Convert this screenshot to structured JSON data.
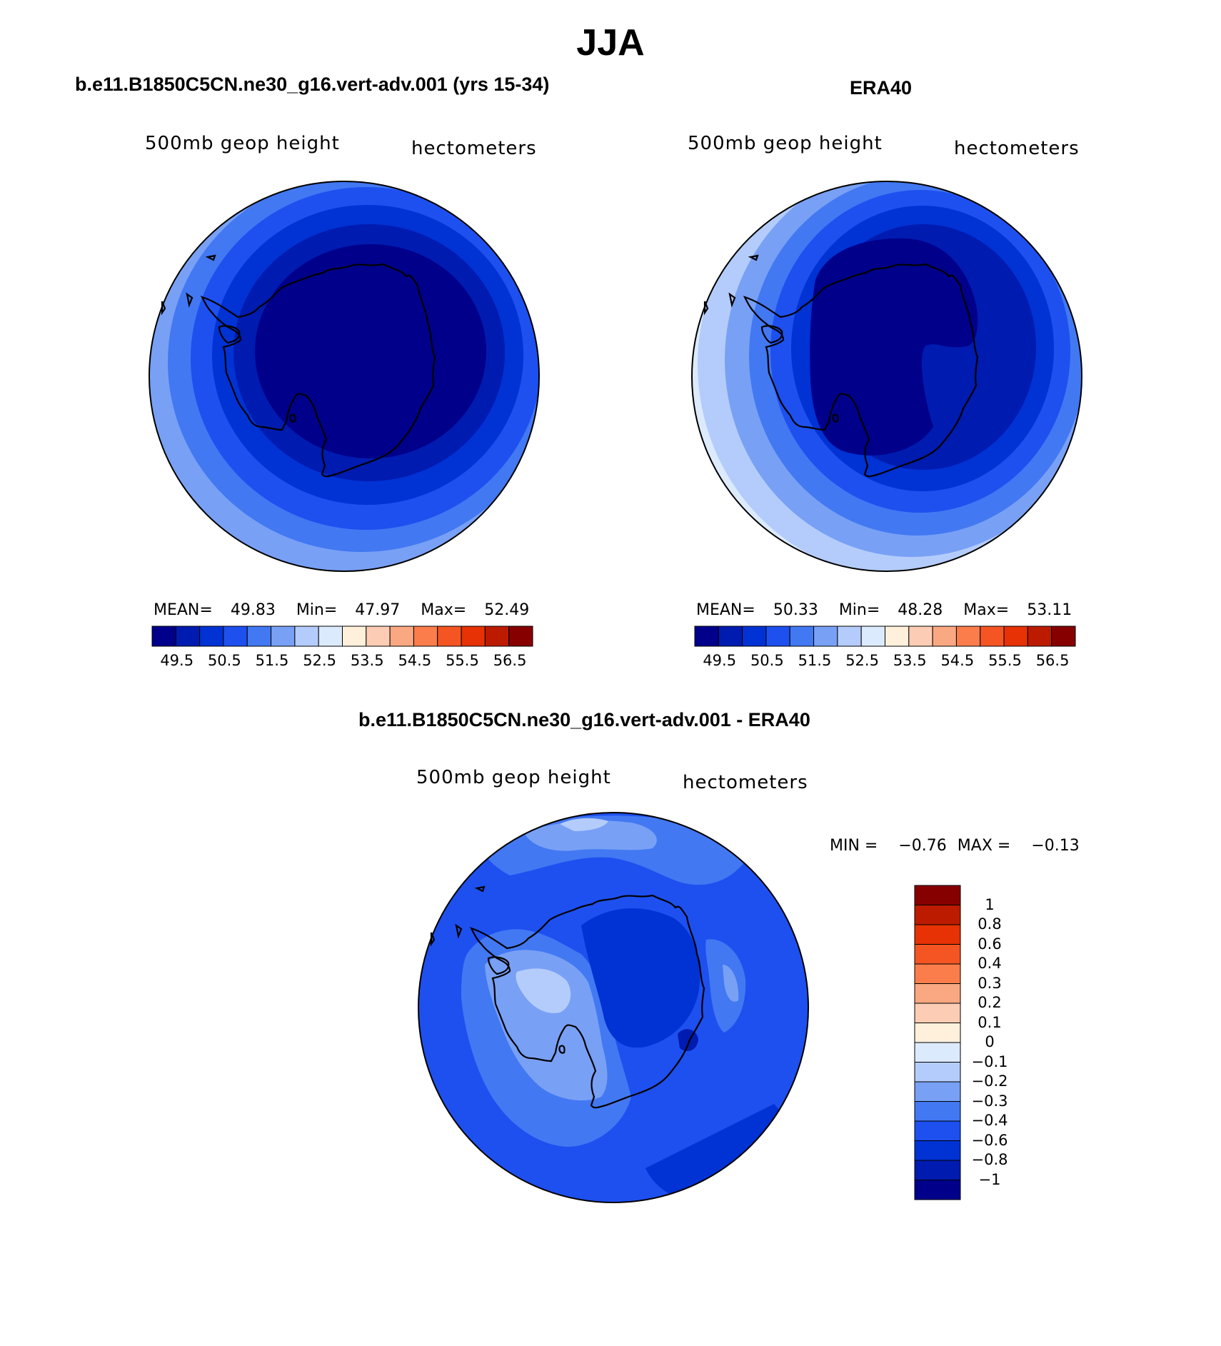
{
  "figure": {
    "title": "JJA"
  },
  "panels": {
    "model": {
      "title": "b.e11.B1850C5CN.ne30_g16.vert-adv.001 (yrs 15-34)",
      "left_label": "500mb geop height",
      "right_label": "hectometers",
      "stats": {
        "mean_label": "MEAN=",
        "mean": "49.83",
        "min_label": "Min=",
        "min": "47.97",
        "max_label": "Max=",
        "max": "52.49"
      }
    },
    "obs": {
      "title": "ERA40",
      "left_label": "500mb geop height",
      "right_label": "hectometers",
      "stats": {
        "mean_label": "MEAN=",
        "mean": "50.33",
        "min_label": "Min=",
        "min": "48.28",
        "max_label": "Max=",
        "max": "53.11"
      }
    },
    "diff": {
      "title": "b.e11.B1850C5CN.ne30_g16.vert-adv.001 - ERA40",
      "left_label": "500mb geop height",
      "right_label": "hectometers",
      "minmax": {
        "min_label": "MIN =",
        "min": "−0.76",
        "max_label": "MAX =",
        "max": "−0.13"
      }
    }
  },
  "colorbars": {
    "abs": {
      "colors": [
        "#00008b",
        "#001bb0",
        "#0032d4",
        "#1e50f0",
        "#4278f2",
        "#78a0f5",
        "#b4ccfb",
        "#dceafe",
        "#fff0dc",
        "#fccdb4",
        "#faa882",
        "#fa7d4b",
        "#f55523",
        "#e63205",
        "#bd1b00",
        "#870000"
      ],
      "labels": [
        "49.5",
        "50.5",
        "51.5",
        "52.5",
        "53.5",
        "54.5",
        "55.5",
        "56.5"
      ]
    },
    "diff": {
      "colors": [
        "#870000",
        "#bd1b00",
        "#e63205",
        "#f55523",
        "#fa7d4b",
        "#faa882",
        "#fccdb4",
        "#fff0dc",
        "#dceafe",
        "#b4ccfb",
        "#78a0f5",
        "#4278f2",
        "#1e50f0",
        "#0032d4",
        "#001bb0",
        "#00008b"
      ],
      "labels": [
        "1",
        "0.8",
        "0.6",
        "0.4",
        "0.3",
        "0.2",
        "0.1",
        "0",
        "−0.1",
        "−0.2",
        "−0.3",
        "−0.4",
        "−0.6",
        "−0.8",
        "−1"
      ]
    }
  }
}
